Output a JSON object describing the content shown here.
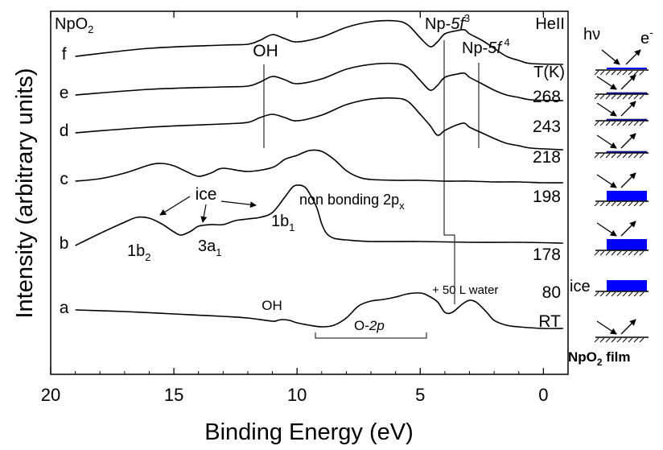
{
  "chart_data": {
    "type": "line",
    "title": "",
    "xlabel": "Binding Energy (eV)",
    "ylabel": "Intensity (arbitrary units)",
    "xlim": [
      20,
      -1
    ],
    "x_reversed": true,
    "x_ticks": [
      20,
      15,
      10,
      5,
      0
    ],
    "grid": false,
    "corner_labels": {
      "sample": "NpO",
      "sample_sub": "2",
      "source": "HeII",
      "temp_header": "T(K)"
    },
    "series": [
      {
        "id": "f",
        "letter": "f",
        "temp": "268",
        "x": [
          19,
          16,
          13,
          12,
          11.5,
          11,
          10.5,
          10,
          9,
          8,
          7,
          6,
          5.5,
          5,
          4.6,
          4.3,
          4,
          3.5,
          3.2,
          3,
          2.5,
          2,
          1.5,
          1,
          0.5,
          -0.8
        ],
        "y": [
          70,
          60,
          56,
          55,
          50,
          43,
          48,
          52,
          46,
          34,
          27,
          26,
          31,
          47,
          58,
          52,
          42,
          38,
          37,
          42,
          50,
          60,
          70,
          75,
          79,
          80
        ]
      },
      {
        "id": "e",
        "letter": "e",
        "temp": "243",
        "x": [
          19,
          16,
          13,
          12,
          11.5,
          11,
          10.5,
          10,
          9,
          8,
          7,
          6,
          5.5,
          5,
          4.6,
          4.3,
          4,
          3.5,
          3.2,
          3,
          2.5,
          2,
          1.5,
          1,
          0.5,
          -0.8
        ],
        "y": [
          118,
          111,
          108,
          107,
          102,
          95,
          99,
          104,
          98,
          86,
          80,
          79,
          84,
          100,
          112,
          106,
          96,
          92,
          91,
          96,
          104,
          112,
          118,
          121,
          124,
          125
        ]
      },
      {
        "id": "d",
        "letter": "d",
        "temp": "218",
        "x": [
          19,
          16,
          13,
          12,
          11.5,
          11,
          10.5,
          10,
          9,
          8,
          7,
          6,
          5.5,
          5,
          4.6,
          4.3,
          4,
          3.5,
          3.2,
          3,
          2.5,
          2,
          1.5,
          1,
          0.5,
          -0.8
        ],
        "y": [
          165,
          158,
          154,
          152,
          146,
          142,
          146,
          150,
          143,
          130,
          123,
          122,
          126,
          142,
          156,
          168,
          162,
          155,
          153,
          158,
          165,
          172,
          178,
          181,
          184,
          186
        ]
      },
      {
        "id": "c",
        "letter": "c",
        "temp": "198",
        "x": [
          19,
          18,
          17,
          16,
          15.5,
          15,
          14.5,
          14,
          13.5,
          13,
          12,
          11,
          10.5,
          10,
          9.5,
          9,
          8.5,
          8,
          7.5,
          7,
          6,
          5,
          4,
          3,
          2,
          1,
          0,
          -0.8
        ],
        "y": [
          225,
          222,
          215,
          205,
          203,
          206,
          213,
          219,
          215,
          209,
          213,
          208,
          198,
          193,
          187,
          188,
          198,
          212,
          220,
          223,
          224,
          224,
          225,
          225,
          226,
          226,
          227,
          227
        ]
      },
      {
        "id": "b",
        "letter": "b",
        "temp": "178",
        "x": [
          19,
          18,
          17,
          16.5,
          16,
          15.5,
          15,
          14.7,
          14.3,
          14,
          13.5,
          13,
          12.5,
          12,
          11.5,
          11,
          10.5,
          10.2,
          10,
          9.7,
          9.5,
          9.2,
          9,
          8.8,
          8.5,
          8,
          7,
          5,
          3,
          1,
          -0.8
        ],
        "y": [
          305,
          290,
          276,
          270,
          271,
          278,
          288,
          292,
          287,
          281,
          279,
          279,
          274,
          272,
          270,
          264,
          245,
          233,
          230,
          232,
          240,
          258,
          278,
          290,
          296,
          298,
          300,
          300,
          301,
          301,
          302
        ]
      },
      {
        "id": "a",
        "letter": "a",
        "temp": "80",
        "x": [
          19,
          17,
          15,
          13,
          12,
          11,
          10.8,
          10.6,
          10.3,
          10,
          9.5,
          9,
          8.5,
          8,
          7.5,
          7,
          6.5,
          6,
          5.5,
          5,
          4.7,
          4.3,
          4,
          3.7,
          3.3,
          3,
          2.7,
          2.3,
          2,
          1.5,
          1,
          0,
          -0.8
        ],
        "y": [
          385,
          387,
          390,
          393,
          395,
          399,
          398,
          397,
          398,
          401,
          404,
          406,
          404,
          395,
          380,
          374,
          372,
          369,
          365,
          364,
          367,
          375,
          388,
          388,
          378,
          373,
          376,
          388,
          398,
          404,
          406,
          408,
          408
        ]
      }
    ],
    "baseline_label": "RT",
    "water_label": "+ 50 L water",
    "annotations": {
      "oh_top": "OH",
      "np5f3_base": "Np-",
      "np5f3_italic": "5f",
      "np5f3_sup": "3",
      "np5f4_base": "Np-",
      "np5f4_italic": "5f",
      "np5f4_sup": " 4",
      "ice": "ice",
      "non_bonding": "non bonding 2p",
      "non_bonding_sub": "x",
      "b1_main": "1b",
      "b1_sub": "1",
      "b2_main": "1b",
      "b2_sub": "2",
      "a1_main": "3a",
      "a1_sub": "1",
      "oh_bottom": "OH",
      "o2p_main": "O-",
      "o2p_italic": "2p"
    },
    "side_schematic": {
      "hv": "hν",
      "electron": "e",
      "electron_sup": "-",
      "ice_label": "ice",
      "film_main": "NpO",
      "film_sub": "2",
      "film_suffix": " film",
      "ice_color": "#0000ff"
    }
  }
}
